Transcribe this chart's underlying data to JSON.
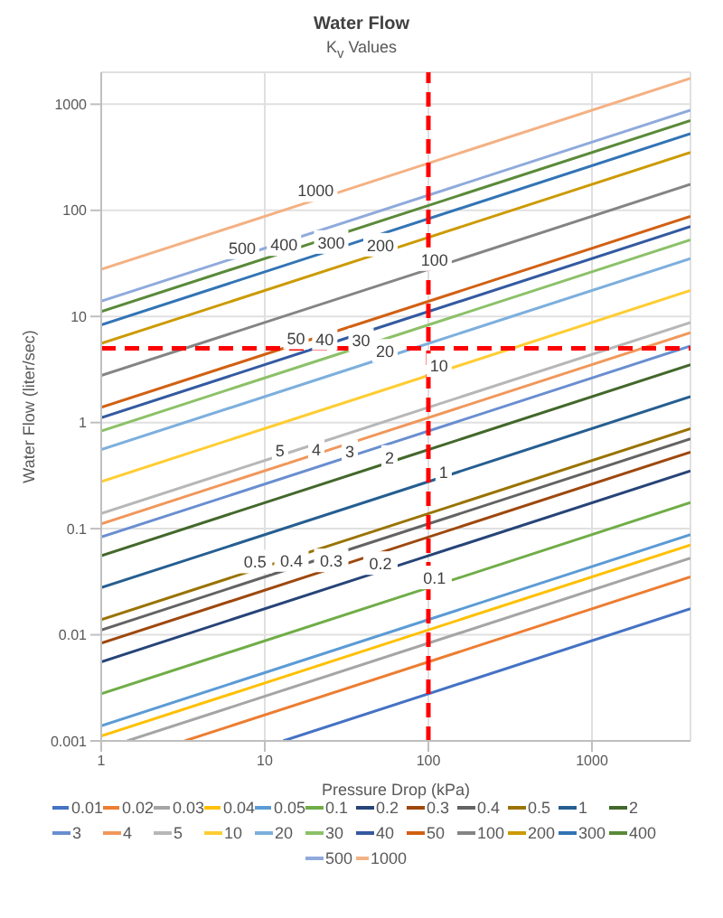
{
  "chart_data": {
    "type": "line",
    "title": "Water Flow",
    "subtitle": "K$_{v}$ Values",
    "xlabel": "Pressure Drop (kPa)",
    "ylabel": "Water Flow (liter/sec)",
    "log": "xy",
    "xlim": [
      1,
      4000
    ],
    "ylim": [
      0.001,
      2000
    ],
    "xticks": [
      1,
      10,
      100,
      1000
    ],
    "yticks": [
      0.001,
      0.01,
      0.1,
      1,
      10,
      100,
      1000
    ],
    "grid": true,
    "legend": "bottom",
    "marker": "none",
    "line_style": "solid",
    "series": [
      {
        "name": "0.01",
        "color": "#4472c4",
        "x": [
          12.96,
          4000
        ],
        "values": [
          0.001,
          0.0176
        ]
      },
      {
        "name": "0.02",
        "color": "#ed7d31",
        "x": [
          3.24,
          4000
        ],
        "values": [
          0.001,
          0.0351
        ]
      },
      {
        "name": "0.03",
        "color": "#a5a5a5",
        "x": [
          1.44,
          4000
        ],
        "values": [
          0.001,
          0.0527
        ]
      },
      {
        "name": "0.04",
        "color": "#ffc000",
        "x": [
          1,
          4000
        ],
        "values": [
          0.00111,
          0.0703
        ]
      },
      {
        "name": "0.05",
        "color": "#5b9bd5",
        "x": [
          1,
          4000
        ],
        "values": [
          0.00139,
          0.0878
        ]
      },
      {
        "name": "0.1",
        "color": "#70ad47",
        "x": [
          1,
          150,
          4000
        ],
        "values": [
          0.00278,
          0.034,
          0.176
        ]
      },
      {
        "name": "0.2",
        "color": "#264478",
        "x": [
          1,
          70,
          4000
        ],
        "values": [
          0.00556,
          0.0465,
          0.351
        ]
      },
      {
        "name": "0.3",
        "color": "#9e480e",
        "x": [
          1,
          35,
          4000
        ],
        "values": [
          0.00833,
          0.0493,
          0.527
        ]
      },
      {
        "name": "0.4",
        "color": "#636363",
        "x": [
          1,
          20,
          4000
        ],
        "values": [
          0.0111,
          0.0497,
          0.703
        ]
      },
      {
        "name": "0.5",
        "color": "#997300",
        "x": [
          1,
          12,
          4000
        ],
        "values": [
          0.0139,
          0.0481,
          0.878
        ]
      },
      {
        "name": "1",
        "color": "#255e91",
        "x": [
          1,
          150,
          4000
        ],
        "values": [
          0.0278,
          0.34,
          1.757
        ]
      },
      {
        "name": "2",
        "color": "#43682b",
        "x": [
          1,
          70,
          4000
        ],
        "values": [
          0.0556,
          0.465,
          3.51
        ]
      },
      {
        "name": "3",
        "color": "#698ed0",
        "x": [
          1,
          40,
          4000
        ],
        "values": [
          0.0833,
          0.527,
          5.27
        ]
      },
      {
        "name": "4",
        "color": "#f1975a",
        "x": [
          1,
          25,
          4000
        ],
        "values": [
          0.111,
          0.556,
          7.03
        ]
      },
      {
        "name": "5",
        "color": "#b7b7b7",
        "x": [
          1,
          15,
          4000
        ],
        "values": [
          0.139,
          0.538,
          8.78
        ]
      },
      {
        "name": "10",
        "color": "#ffcd33",
        "x": [
          1,
          150,
          4000
        ],
        "values": [
          0.278,
          3.4,
          17.6
        ]
      },
      {
        "name": "20",
        "color": "#7cafdd",
        "x": [
          1,
          70,
          4000
        ],
        "values": [
          0.556,
          4.65,
          35.1
        ]
      },
      {
        "name": "30",
        "color": "#8cc168",
        "x": [
          1,
          50,
          4000
        ],
        "values": [
          0.833,
          5.89,
          52.7
        ]
      },
      {
        "name": "40",
        "color": "#335aa1",
        "x": [
          1,
          30,
          4000
        ],
        "values": [
          1.11,
          6.09,
          70.3
        ]
      },
      {
        "name": "50",
        "color": "#d26012",
        "x": [
          1,
          20,
          4000
        ],
        "values": [
          1.39,
          6.21,
          87.8
        ]
      },
      {
        "name": "100",
        "color": "#848484",
        "x": [
          1,
          150,
          4000
        ],
        "values": [
          2.78,
          34,
          176
        ]
      },
      {
        "name": "200",
        "color": "#cc9a00",
        "x": [
          1,
          70,
          4000
        ],
        "values": [
          5.56,
          46.5,
          351
        ]
      },
      {
        "name": "300",
        "color": "#3274b5",
        "x": [
          1,
          35,
          4000
        ],
        "values": [
          8.33,
          49.3,
          527
        ]
      },
      {
        "name": "400",
        "color": "#5a8a39",
        "x": [
          1,
          18,
          4000
        ],
        "values": [
          11.1,
          47.1,
          703
        ]
      },
      {
        "name": "500",
        "color": "#8faadc",
        "x": [
          1,
          10,
          4000
        ],
        "values": [
          13.9,
          43.9,
          878
        ]
      },
      {
        "name": "1000",
        "color": "#f4b183",
        "x": [
          1,
          30,
          4000
        ],
        "values": [
          27.8,
          152,
          1757
        ]
      }
    ],
    "ref_lines": [
      {
        "axis": "y",
        "value": 5,
        "color": "#ff0000",
        "line_style": "dashed"
      },
      {
        "axis": "x",
        "value": 100,
        "color": "#ff0000",
        "line_style": "dashed"
      }
    ]
  }
}
